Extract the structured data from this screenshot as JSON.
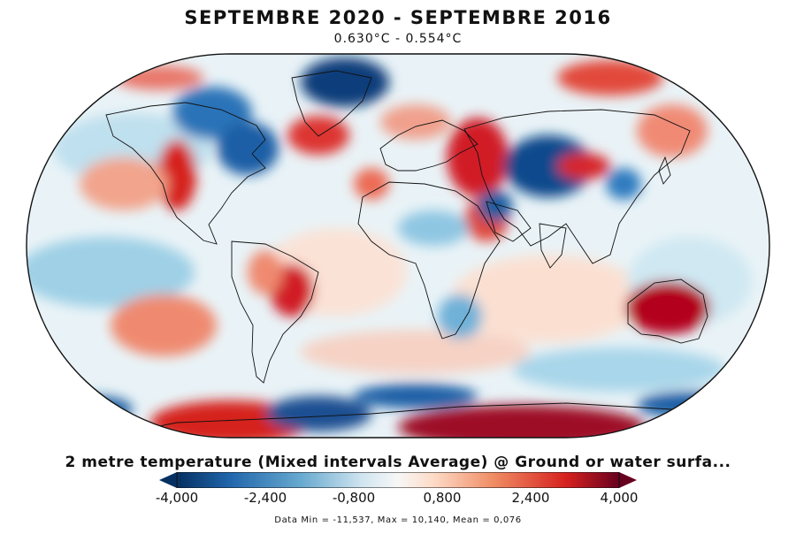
{
  "title": "SEPTEMBRE 2020 - SEPTEMBRE 2016",
  "subtitle": "0.630°C - 0.554°C",
  "caption": "2 metre temperature (Mixed intervals Average) @ Ground or water surfa...",
  "colorbar": {
    "ticks": [
      "-4,000",
      "-2,400",
      "-0,800",
      "0,800",
      "2,400",
      "4,000"
    ],
    "colors": {
      "cold_extreme": "#053061",
      "cold": "#2166ac",
      "cool": "#67a9cf",
      "light_cool": "#d1e5f0",
      "neutral": "#f7f7f7",
      "light_warm": "#fddbc7",
      "warm": "#ef8a62",
      "hot": "#d6211f",
      "hot_extreme": "#67001f"
    }
  },
  "stats": "Data Min = -11,537, Max = 10,140, Mean = 0,076"
}
